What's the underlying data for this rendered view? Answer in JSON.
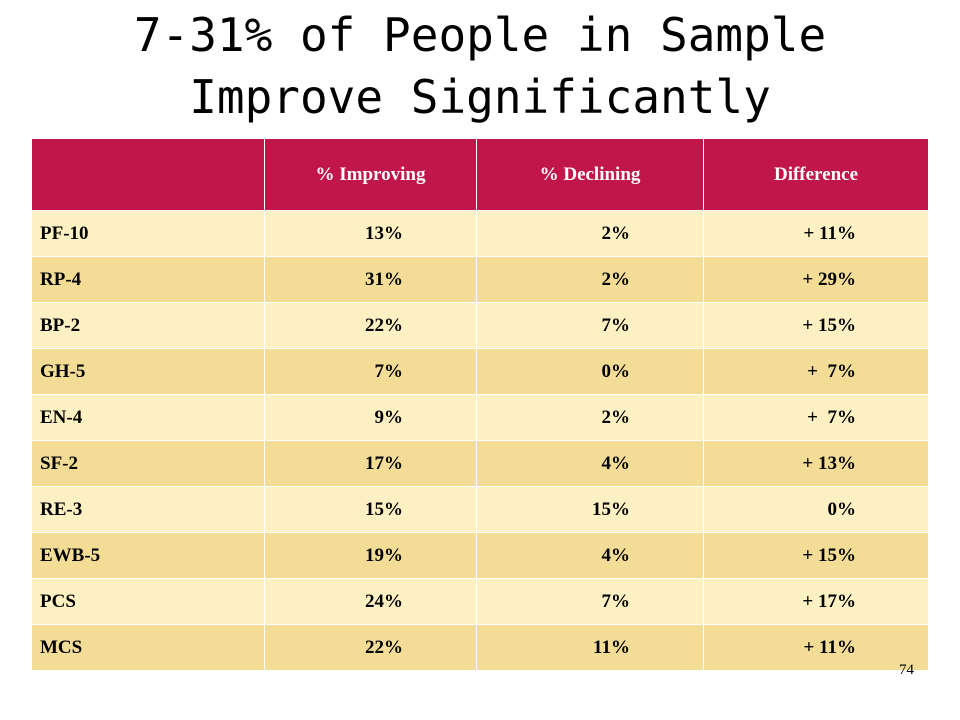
{
  "slide": {
    "title_line1": "7-31% of People in Sample",
    "title_line2": "Improve Significantly",
    "page_number": "74"
  },
  "table": {
    "headers": [
      "",
      "% Improving",
      "% Declining",
      "Difference"
    ],
    "rows": [
      [
        "PF-10",
        "13%",
        "2%",
        "+ 11%"
      ],
      [
        "RP-4",
        "31%",
        "2%",
        "+ 29%"
      ],
      [
        "BP-2",
        "22%",
        "7%",
        "+ 15%"
      ],
      [
        "GH-5",
        " 7%",
        "0%",
        "+  7%"
      ],
      [
        "EN-4",
        " 9%",
        "2%",
        "+  7%"
      ],
      [
        "SF-2",
        "17%",
        "4%",
        "+ 13%"
      ],
      [
        "RE-3",
        "15%",
        "15%",
        "   0%"
      ],
      [
        "EWB-5",
        "19%",
        "4%",
        "+ 15%"
      ],
      [
        "PCS",
        "24%",
        "7%",
        "+ 17%"
      ],
      [
        "MCS",
        "22%",
        "11%",
        "+ 11%"
      ]
    ]
  },
  "colors": {
    "header_bg": "#c0164a",
    "row_light": "#fdf0c2",
    "row_dark": "#f2dc96"
  }
}
